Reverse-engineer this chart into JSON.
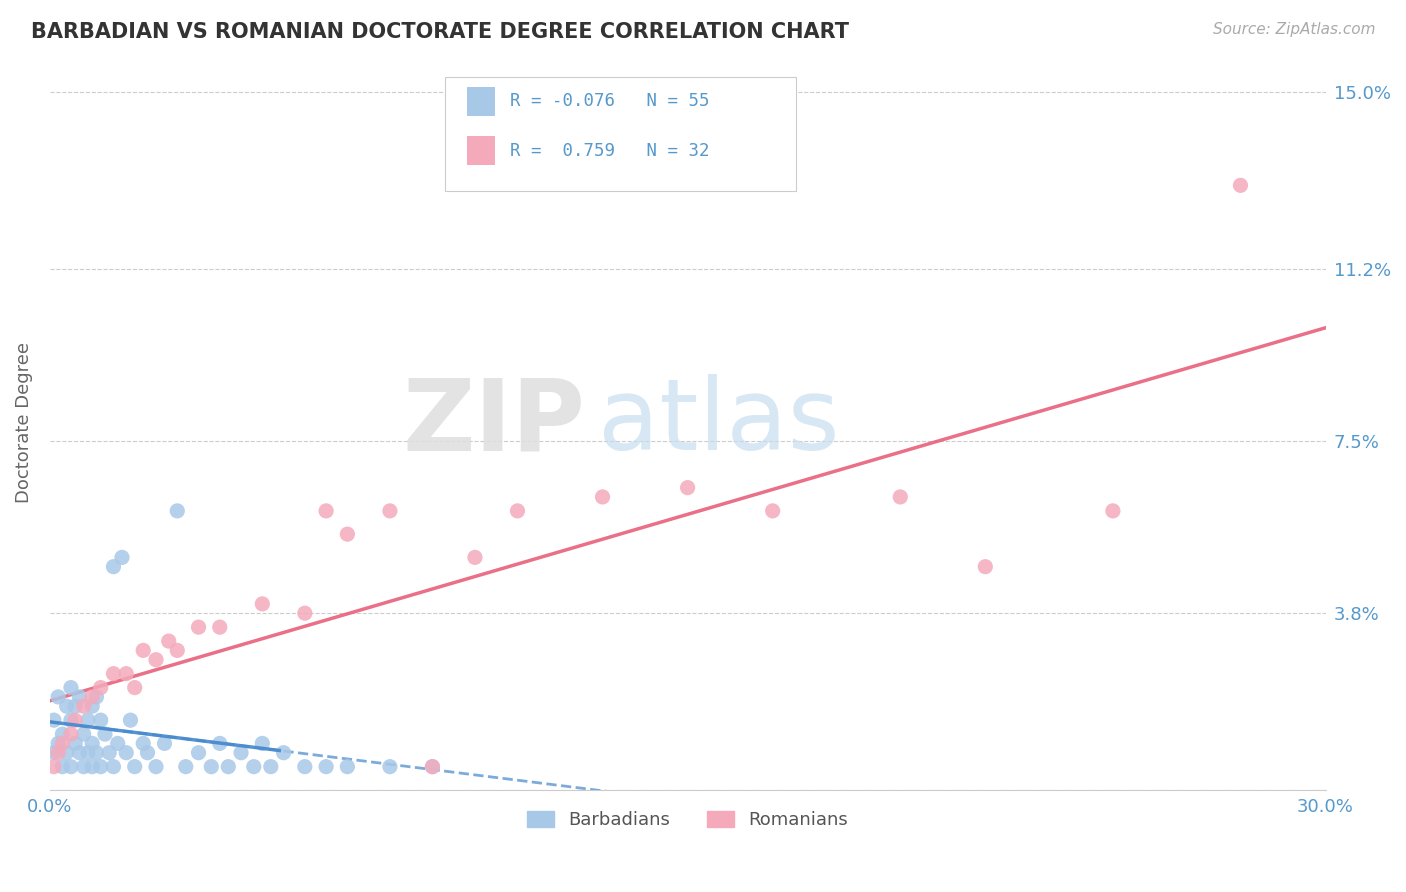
{
  "title": "BARBADIAN VS ROMANIAN DOCTORATE DEGREE CORRELATION CHART",
  "source": "Source: ZipAtlas.com",
  "ylabel": "Doctorate Degree",
  "ytick_vals": [
    0.0,
    0.038,
    0.075,
    0.112,
    0.15
  ],
  "ytick_labels": [
    "",
    "3.8%",
    "7.5%",
    "11.2%",
    "15.0%"
  ],
  "legend_r1": "R = -0.076",
  "legend_n1": "N = 55",
  "legend_r2": "R =  0.759",
  "legend_n2": "N = 32",
  "legend_label1": "Barbadians",
  "legend_label2": "Romanians",
  "blue_scatter_color": "#a8c8e8",
  "pink_scatter_color": "#f4aabb",
  "blue_line_color": "#4488cc",
  "pink_line_color": "#e8607a",
  "axis_label_color": "#5599cc",
  "watermark_zip_color": "#d8eaf8",
  "watermark_atlas_color": "#c0d8f0",
  "background_color": "#ffffff",
  "barbadians_x": [
    0.001,
    0.001,
    0.002,
    0.002,
    0.003,
    0.003,
    0.004,
    0.004,
    0.005,
    0.005,
    0.005,
    0.006,
    0.006,
    0.007,
    0.007,
    0.008,
    0.008,
    0.009,
    0.009,
    0.01,
    0.01,
    0.01,
    0.011,
    0.011,
    0.012,
    0.012,
    0.013,
    0.014,
    0.015,
    0.015,
    0.016,
    0.017,
    0.018,
    0.019,
    0.02,
    0.022,
    0.023,
    0.025,
    0.027,
    0.03,
    0.032,
    0.035,
    0.038,
    0.04,
    0.042,
    0.045,
    0.048,
    0.05,
    0.052,
    0.055,
    0.06,
    0.065,
    0.07,
    0.08,
    0.09
  ],
  "barbadians_y": [
    0.008,
    0.015,
    0.01,
    0.02,
    0.012,
    0.005,
    0.018,
    0.008,
    0.015,
    0.022,
    0.005,
    0.01,
    0.018,
    0.008,
    0.02,
    0.012,
    0.005,
    0.015,
    0.008,
    0.018,
    0.01,
    0.005,
    0.02,
    0.008,
    0.015,
    0.005,
    0.012,
    0.008,
    0.048,
    0.005,
    0.01,
    0.05,
    0.008,
    0.015,
    0.005,
    0.01,
    0.008,
    0.005,
    0.01,
    0.06,
    0.005,
    0.008,
    0.005,
    0.01,
    0.005,
    0.008,
    0.005,
    0.01,
    0.005,
    0.008,
    0.005,
    0.005,
    0.005,
    0.005,
    0.005
  ],
  "romanians_x": [
    0.001,
    0.002,
    0.003,
    0.005,
    0.006,
    0.008,
    0.01,
    0.012,
    0.015,
    0.018,
    0.02,
    0.022,
    0.025,
    0.028,
    0.03,
    0.035,
    0.04,
    0.05,
    0.06,
    0.065,
    0.07,
    0.08,
    0.09,
    0.1,
    0.11,
    0.13,
    0.15,
    0.17,
    0.2,
    0.22,
    0.25,
    0.28
  ],
  "romanians_y": [
    0.005,
    0.008,
    0.01,
    0.012,
    0.015,
    0.018,
    0.02,
    0.022,
    0.025,
    0.025,
    0.022,
    0.03,
    0.028,
    0.032,
    0.03,
    0.035,
    0.035,
    0.04,
    0.038,
    0.06,
    0.055,
    0.06,
    0.005,
    0.05,
    0.06,
    0.063,
    0.065,
    0.06,
    0.063,
    0.048,
    0.06,
    0.13
  ],
  "xlim": [
    0.0,
    0.3
  ],
  "ylim": [
    0.0,
    0.158
  ]
}
